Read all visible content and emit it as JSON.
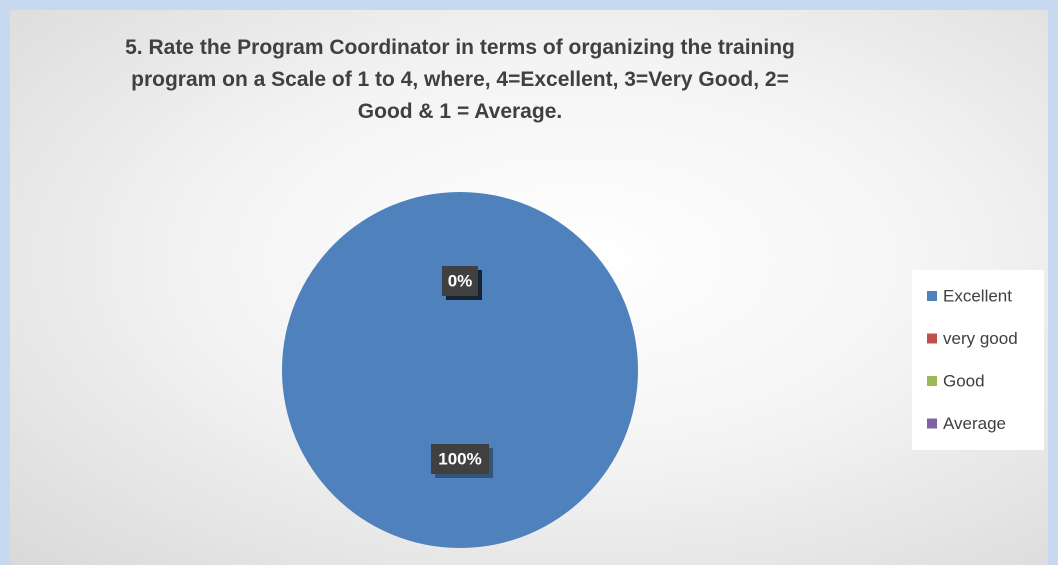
{
  "chart_data": {
    "type": "pie",
    "title": "5. Rate the Program Coordinator in terms of organizing the training program on a Scale of 1 to 4, where, 4=Excellent, 3=Very Good, 2= Good & 1 = Average.",
    "categories": [
      "Excellent",
      "very good",
      "Good",
      "Average"
    ],
    "values": [
      100,
      0,
      0,
      0
    ],
    "value_labels": [
      "100%",
      "0%",
      "0%",
      "0%"
    ],
    "colors": [
      "#4f81bd",
      "#c0504d",
      "#9bbb59",
      "#8064a2"
    ],
    "legend": "right"
  }
}
